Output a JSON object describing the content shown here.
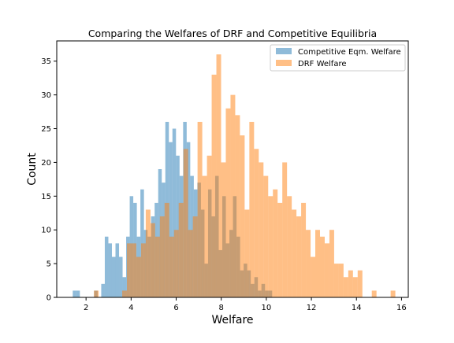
{
  "chart_data": {
    "type": "histogram",
    "title": "Comparing the Welfares of DRF and Competitive Equilibria",
    "xlabel": "Welfare",
    "ylabel": "Count",
    "xlim": [
      0.7,
      16.3
    ],
    "ylim": [
      0,
      38
    ],
    "xticks": [
      2,
      4,
      6,
      8,
      10,
      12,
      14,
      16
    ],
    "yticks": [
      0,
      5,
      10,
      15,
      20,
      25,
      30,
      35
    ],
    "legend_position": "upper right",
    "grid": false,
    "series": [
      {
        "name": "Competitive Eqm. Welfare",
        "color": "#1f77b4",
        "alpha": 0.5,
        "bin_start": 1.41,
        "bin_width": 0.158,
        "counts": [
          1,
          1,
          0,
          0,
          0,
          0,
          1,
          0,
          2,
          9,
          8,
          6,
          8,
          6,
          3,
          9,
          15,
          14,
          9,
          16,
          10,
          9,
          12,
          14,
          19,
          17,
          26,
          23,
          25,
          21,
          18,
          26,
          23,
          18,
          16,
          17,
          13,
          5,
          16,
          12,
          18,
          7,
          15,
          8,
          10,
          15,
          9,
          4,
          5,
          4,
          2,
          3,
          1,
          2,
          1,
          1
        ]
      },
      {
        "name": "DRF Welfare",
        "color": "#ff7f0e",
        "alpha": 0.5,
        "bin_start": 2.35,
        "bin_width": 0.209,
        "counts": [
          1,
          0,
          0,
          0,
          0,
          0,
          1,
          8,
          8,
          6,
          8,
          13,
          11,
          9,
          12,
          14,
          9,
          10,
          14,
          22,
          10,
          12,
          26,
          18,
          21,
          33,
          36,
          20,
          28,
          30,
          27,
          24,
          13,
          26,
          22,
          20,
          18,
          15,
          16,
          14,
          20,
          15,
          13,
          12,
          14,
          10,
          6,
          10,
          9,
          8,
          10,
          5,
          5,
          3,
          4,
          3,
          4,
          0,
          0,
          1,
          0,
          0,
          0,
          1
        ]
      }
    ]
  }
}
